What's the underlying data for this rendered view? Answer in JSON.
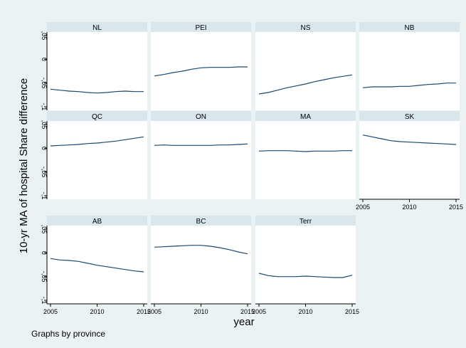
{
  "figure": {
    "ylabel": "10-yr MA of hospital Share difference",
    "xlabel": "year",
    "note": "Graphs by province"
  },
  "colors": {
    "background": "#ffffff",
    "outer_frame": "#eaf2f3",
    "panel_header": "#d9e6eb",
    "line": "#1a476f",
    "axis": "#000000"
  },
  "chart_data": [
    {
      "type": "line",
      "title": "NL",
      "x": [
        2005,
        2006,
        2007,
        2008,
        2009,
        2010,
        2011,
        2012,
        2013,
        2014,
        2015
      ],
      "values": [
        -0.063,
        -0.065,
        -0.067,
        -0.068,
        -0.07,
        -0.071,
        -0.07,
        -0.068,
        -0.067,
        -0.068,
        -0.068
      ],
      "xlim": [
        2005,
        2015
      ],
      "ylim": [
        -0.1,
        0.05
      ],
      "yticks": [
        "-,1",
        "-,05",
        "0",
        ",05"
      ],
      "xticks": [
        "2005",
        "2010",
        "2015"
      ],
      "show_xaxis": false
    },
    {
      "type": "line",
      "title": "PEI",
      "x": [
        2005,
        2006,
        2007,
        2008,
        2009,
        2010,
        2011,
        2012,
        2013,
        2014,
        2015
      ],
      "values": [
        -0.035,
        -0.032,
        -0.028,
        -0.025,
        -0.021,
        -0.018,
        -0.017,
        -0.017,
        -0.017,
        -0.016,
        -0.016
      ],
      "xlim": [
        2005,
        2015
      ],
      "ylim": [
        -0.1,
        0.05
      ],
      "yticks": [
        "-,1",
        "-,05",
        "0",
        ",05"
      ],
      "xticks": [
        "2005",
        "2010",
        "2015"
      ],
      "show_xaxis": false
    },
    {
      "type": "line",
      "title": "NS",
      "x": [
        2005,
        2006,
        2007,
        2008,
        2009,
        2010,
        2011,
        2012,
        2013,
        2014,
        2015
      ],
      "values": [
        -0.073,
        -0.07,
        -0.065,
        -0.06,
        -0.056,
        -0.052,
        -0.047,
        -0.043,
        -0.039,
        -0.036,
        -0.033
      ],
      "xlim": [
        2005,
        2015
      ],
      "ylim": [
        -0.1,
        0.05
      ],
      "yticks": [
        "-,1",
        "-,05",
        "0",
        ",05"
      ],
      "xticks": [
        "2005",
        "2010",
        "2015"
      ],
      "show_xaxis": false
    },
    {
      "type": "line",
      "title": "NB",
      "x": [
        2005,
        2006,
        2007,
        2008,
        2009,
        2010,
        2011,
        2012,
        2013,
        2014,
        2015
      ],
      "values": [
        -0.06,
        -0.058,
        -0.058,
        -0.058,
        -0.057,
        -0.057,
        -0.055,
        -0.053,
        -0.052,
        -0.05,
        -0.05
      ],
      "xlim": [
        2005,
        2015
      ],
      "ylim": [
        -0.1,
        0.05
      ],
      "yticks": [
        "-,1",
        "-,05",
        "0",
        ",05"
      ],
      "xticks": [
        "2005",
        "2010",
        "2015"
      ],
      "show_xaxis": false
    },
    {
      "type": "line",
      "title": "QC",
      "x": [
        2005,
        2006,
        2007,
        2008,
        2009,
        2010,
        2011,
        2012,
        2013,
        2014,
        2015
      ],
      "values": [
        0.005,
        0.006,
        0.007,
        0.008,
        0.01,
        0.011,
        0.013,
        0.015,
        0.018,
        0.021,
        0.024
      ],
      "xlim": [
        2005,
        2015
      ],
      "ylim": [
        -0.1,
        0.05
      ],
      "yticks": [
        "-,1",
        "-,05",
        "0",
        ",05"
      ],
      "xticks": [
        "2005",
        "2010",
        "2015"
      ],
      "show_xaxis": false
    },
    {
      "type": "line",
      "title": "ON",
      "x": [
        2005,
        2006,
        2007,
        2008,
        2009,
        2010,
        2011,
        2012,
        2013,
        2014,
        2015
      ],
      "values": [
        0.006,
        0.007,
        0.006,
        0.006,
        0.006,
        0.006,
        0.006,
        0.007,
        0.007,
        0.008,
        0.009
      ],
      "xlim": [
        2005,
        2015
      ],
      "ylim": [
        -0.1,
        0.05
      ],
      "yticks": [
        "-,1",
        "-,05",
        "0",
        ",05"
      ],
      "xticks": [
        "2005",
        "2010",
        "2015"
      ],
      "show_xaxis": false
    },
    {
      "type": "line",
      "title": "MA",
      "x": [
        2005,
        2006,
        2007,
        2008,
        2009,
        2010,
        2011,
        2012,
        2013,
        2014,
        2015
      ],
      "values": [
        -0.006,
        -0.005,
        -0.005,
        -0.005,
        -0.006,
        -0.007,
        -0.006,
        -0.006,
        -0.006,
        -0.005,
        -0.005
      ],
      "xlim": [
        2005,
        2015
      ],
      "ylim": [
        -0.1,
        0.05
      ],
      "yticks": [
        "-,1",
        "-,05",
        "0",
        ",05"
      ],
      "xticks": [
        "2005",
        "2010",
        "2015"
      ],
      "show_xaxis": false
    },
    {
      "type": "line",
      "title": "SK",
      "x": [
        2005,
        2006,
        2007,
        2008,
        2009,
        2010,
        2011,
        2012,
        2013,
        2014,
        2015
      ],
      "values": [
        0.028,
        0.024,
        0.02,
        0.016,
        0.014,
        0.013,
        0.012,
        0.011,
        0.01,
        0.009,
        0.008
      ],
      "xlim": [
        2005,
        2015
      ],
      "ylim": [
        -0.1,
        0.05
      ],
      "yticks": [
        "-,1",
        "-,05",
        "0",
        ",05"
      ],
      "xticks": [
        "2005",
        "2010",
        "2015"
      ],
      "show_xaxis": true
    },
    {
      "type": "line",
      "title": "AB",
      "x": [
        2005,
        2006,
        2007,
        2008,
        2009,
        2010,
        2011,
        2012,
        2013,
        2014,
        2015
      ],
      "values": [
        -0.012,
        -0.015,
        -0.016,
        -0.018,
        -0.022,
        -0.026,
        -0.029,
        -0.032,
        -0.035,
        -0.038,
        -0.04
      ],
      "xlim": [
        2005,
        2015
      ],
      "ylim": [
        -0.1,
        0.05
      ],
      "yticks": [
        "-,1",
        "-,05",
        "0",
        ",05"
      ],
      "xticks": [
        "2005",
        "2010",
        "2015"
      ],
      "show_xaxis": true
    },
    {
      "type": "line",
      "title": "BC",
      "x": [
        2005,
        2006,
        2007,
        2008,
        2009,
        2010,
        2011,
        2012,
        2013,
        2014,
        2015
      ],
      "values": [
        0.012,
        0.013,
        0.014,
        0.015,
        0.016,
        0.016,
        0.014,
        0.011,
        0.007,
        0.002,
        -0.002
      ],
      "xlim": [
        2005,
        2015
      ],
      "ylim": [
        -0.1,
        0.05
      ],
      "yticks": [
        "-,1",
        "-,05",
        "0",
        ",05"
      ],
      "xticks": [
        "2005",
        "2010",
        "2015"
      ],
      "show_xaxis": true
    },
    {
      "type": "line",
      "title": "Terr",
      "x": [
        2005,
        2006,
        2007,
        2008,
        2009,
        2010,
        2011,
        2012,
        2013,
        2014,
        2015
      ],
      "values": [
        -0.043,
        -0.048,
        -0.05,
        -0.05,
        -0.05,
        -0.049,
        -0.05,
        -0.051,
        -0.052,
        -0.052,
        -0.047
      ],
      "xlim": [
        2005,
        2015
      ],
      "ylim": [
        -0.1,
        0.05
      ],
      "yticks": [
        "-,1",
        "-,05",
        "0",
        ",05"
      ],
      "xticks": [
        "2005",
        "2010",
        "2015"
      ],
      "show_xaxis": true
    }
  ]
}
